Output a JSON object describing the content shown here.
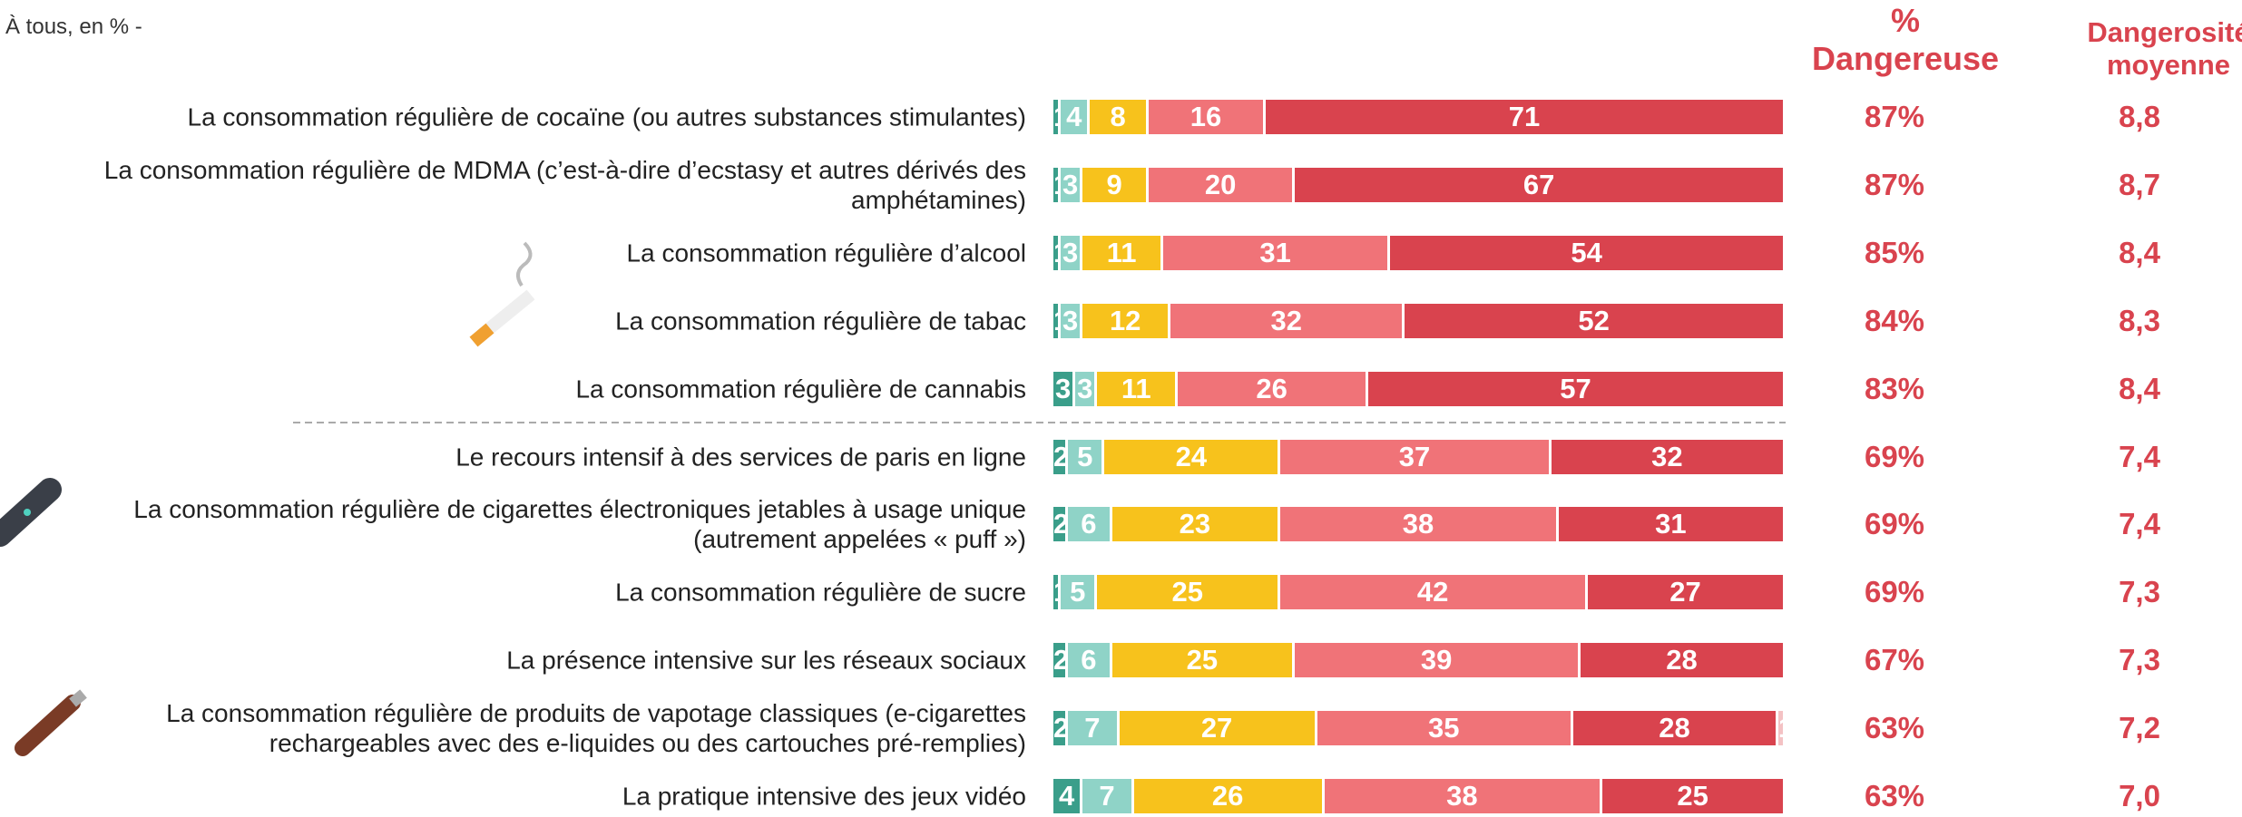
{
  "chart_data": {
    "type": "stacked_bar_horizontal",
    "subtitle": "À tous, en % -",
    "categories": [
      "La consommation régulière de cocaïne (ou autres substances stimulantes)",
      "La consommation régulière de MDMA (c’est-à-dire d’ecstasy et autres dérivés des\namphétamines)",
      "La consommation régulière d’alcool",
      "La consommation régulière de tabac",
      "La consommation régulière de cannabis",
      "Le recours intensif à des services de paris en ligne",
      "La consommation régulière de cigarettes électroniques jetables à usage unique\n(autrement appelées « puff »)",
      "La consommation régulière de sucre",
      "La présence intensive sur les réseaux sociaux",
      "La consommation régulière de produits de vapotage classiques (e-cigarettes\nrechargeables avec des e-liquides ou des cartouches pré-remplies)",
      "La pratique intensive des jeux vidéo"
    ],
    "xlim": [
      0,
      100
    ],
    "series": [
      {
        "color": "#3a9e8a",
        "values": [
          1,
          1,
          1,
          1,
          3,
          2,
          2,
          1,
          2,
          2,
          4
        ]
      },
      {
        "color": "#8fd3c7",
        "values": [
          4,
          3,
          3,
          3,
          3,
          5,
          6,
          5,
          6,
          7,
          7
        ]
      },
      {
        "color": "#f7c21c",
        "values": [
          8,
          9,
          11,
          12,
          11,
          24,
          23,
          25,
          25,
          27,
          26
        ]
      },
      {
        "color": "#f07378",
        "values": [
          16,
          20,
          31,
          32,
          26,
          37,
          38,
          42,
          39,
          35,
          38
        ]
      },
      {
        "color": "#d9434e",
        "values": [
          71,
          67,
          54,
          52,
          57,
          32,
          31,
          27,
          28,
          28,
          25
        ]
      },
      {
        "color": "#f4c2c4",
        "values": [
          null,
          null,
          null,
          null,
          null,
          null,
          null,
          null,
          null,
          1,
          null
        ]
      }
    ],
    "dangerous": {
      "header": [
        "%",
        "Dangereuse"
      ],
      "values": [
        87,
        87,
        85,
        84,
        83,
        69,
        69,
        69,
        67,
        63,
        63
      ],
      "value_labels": [
        "87%",
        "87%",
        "85%",
        "84%",
        "83%",
        "69%",
        "69%",
        "69%",
        "67%",
        "63%",
        "63%"
      ]
    },
    "average": {
      "header": [
        "Dangerosité",
        "moyenne"
      ],
      "values": [
        8.8,
        8.7,
        8.4,
        8.3,
        8.4,
        7.4,
        7.4,
        7.3,
        7.3,
        7.2,
        7.0
      ],
      "value_labels": [
        "8,8",
        "8,7",
        "8,4",
        "8,3",
        "8,4",
        "7,4",
        "7,4",
        "7,3",
        "7,3",
        "7,2",
        "7,0"
      ]
    },
    "separator_after": 4
  }
}
